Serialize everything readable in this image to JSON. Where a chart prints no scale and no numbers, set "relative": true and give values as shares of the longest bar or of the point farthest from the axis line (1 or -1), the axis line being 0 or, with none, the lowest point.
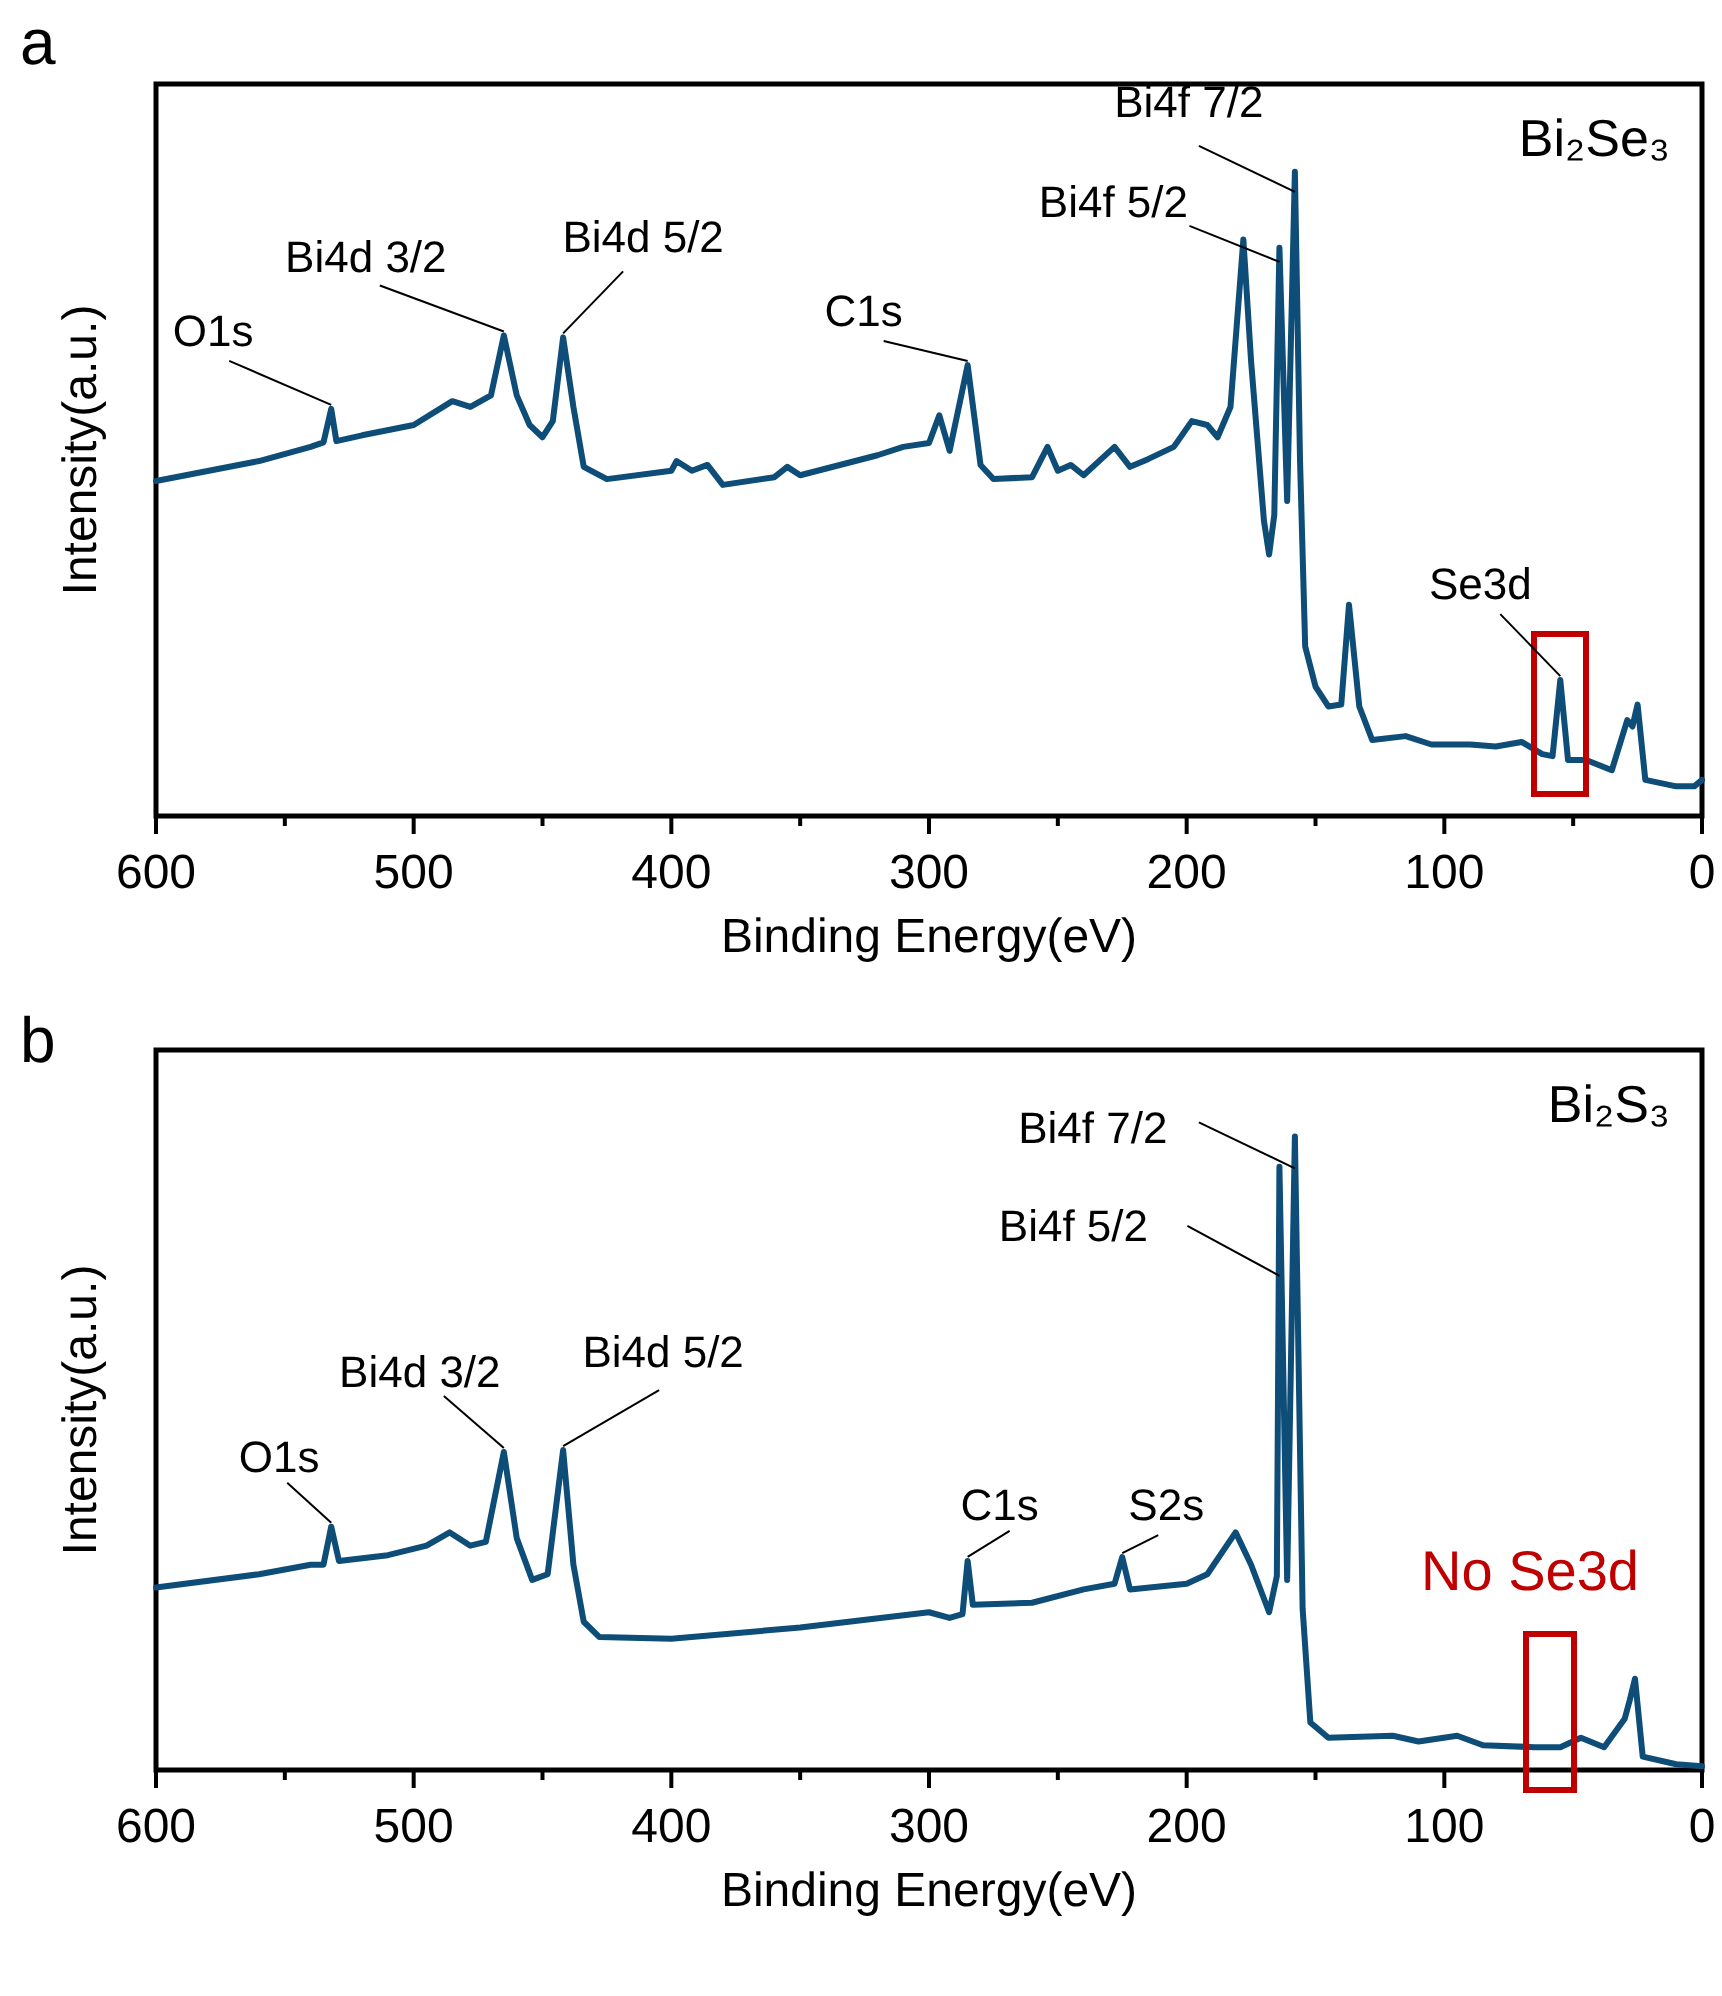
{
  "chart_data": [
    {
      "type": "line",
      "title": "Bi₂Se₃",
      "xlabel": "Binding Energy(eV)",
      "ylabel": "Intensity(a.u.)",
      "relative": true,
      "xlim": [
        600,
        0
      ],
      "xticks": [
        600,
        {
          "value": 550,
          "label": null
        },
        500,
        {
          "value": 450,
          "label": null
        },
        400,
        {
          "value": 350,
          "label": null
        },
        300,
        {
          "value": 250,
          "label": null
        },
        200,
        {
          "value": 150,
          "label": null
        },
        100,
        {
          "value": 50,
          "label": null
        },
        0
      ],
      "tick_labels": "x",
      "series": [
        {
          "color": "#0e4d78",
          "x": [
            600,
            560,
            540,
            535,
            532,
            530,
            520,
            500,
            485,
            478,
            470,
            465,
            460,
            455,
            450,
            446,
            442,
            438,
            434,
            425,
            400,
            398,
            392,
            386,
            380,
            360,
            355,
            350,
            320,
            310,
            300,
            296,
            292,
            285,
            280,
            275,
            260,
            254,
            250,
            245,
            240,
            228,
            222,
            215,
            205,
            198,
            192,
            188,
            183,
            178,
            175,
            170,
            168,
            166,
            164,
            161,
            158,
            156,
            154,
            150,
            145,
            140,
            137,
            133,
            128,
            115,
            105,
            90,
            80,
            70,
            62,
            58,
            55,
            52,
            45,
            35,
            29,
            27,
            25,
            22,
            10,
            3,
            0
          ],
          "values": [
            0.52,
            0.551,
            0.573,
            0.58,
            0.632,
            0.582,
            0.591,
            0.607,
            0.644,
            0.635,
            0.653,
            0.746,
            0.653,
            0.607,
            0.588,
            0.613,
            0.743,
            0.635,
            0.542,
            0.523,
            0.536,
            0.551,
            0.536,
            0.545,
            0.514,
            0.526,
            0.542,
            0.529,
            0.56,
            0.573,
            0.579,
            0.622,
            0.567,
            0.7,
            0.545,
            0.523,
            0.526,
            0.573,
            0.536,
            0.545,
            0.529,
            0.573,
            0.542,
            0.554,
            0.573,
            0.613,
            0.607,
            0.588,
            0.635,
            0.895,
            0.706,
            0.458,
            0.406,
            0.467,
            0.882,
            0.489,
            1,
            0.551,
            0.263,
            0.201,
            0.17,
            0.173,
            0.328,
            0.17,
            0.118,
            0.124,
            0.111,
            0.111,
            0.108,
            0.115,
            0.096,
            0.093,
            0.211,
            0.087,
            0.087,
            0.071,
            0.149,
            0.139,
            0.173,
            0.056,
            0.046,
            0.046,
            0.056
          ]
        }
      ],
      "annotations": [
        "a",
        {
          "text": "O1s",
          "x": 532,
          "y": 0.632
        },
        {
          "text": "Bi4d 3/2",
          "x": 465,
          "y": 0.746
        },
        {
          "text": "Bi4d 5/2",
          "x": 442,
          "y": 0.743
        },
        {
          "text": "C1s",
          "x": 285,
          "y": 0.7
        },
        {
          "text": "Bi4f 5/2",
          "x": 164,
          "y": 0.882
        },
        {
          "text": "Bi4f 7/2",
          "x": 158,
          "y": 1
        },
        {
          "text": "Se3d",
          "x": 55,
          "y": 0.211
        }
      ]
    },
    {
      "type": "line",
      "title": "Bi₂S₃",
      "xlabel": "Binding Energy(eV)",
      "ylabel": "Intensity(a.u.)",
      "relative": true,
      "xlim": [
        600,
        0
      ],
      "xticks": [
        600,
        {
          "value": 550,
          "label": null
        },
        500,
        {
          "value": 450,
          "label": null
        },
        400,
        {
          "value": 350,
          "label": null
        },
        300,
        {
          "value": 250,
          "label": null
        },
        200,
        {
          "value": 150,
          "label": null
        },
        100,
        {
          "value": 50,
          "label": null
        },
        0
      ],
      "tick_labels": "x",
      "series": [
        {
          "color": "#0e4d78",
          "x": [
            600,
            560,
            540,
            535,
            532,
            529,
            510,
            495,
            486,
            478,
            472,
            465,
            460,
            454,
            448,
            442,
            438,
            434,
            428,
            400,
            350,
            300,
            292,
            287,
            285,
            283,
            260,
            240,
            228,
            225,
            222,
            200,
            192,
            181,
            175,
            168,
            165,
            164,
            161,
            158,
            155,
            152,
            145,
            120,
            110,
            95,
            85,
            65,
            55,
            47,
            38,
            30,
            28,
            26,
            23,
            10,
            0
          ],
          "values": [
            0.288,
            0.309,
            0.324,
            0.324,
            0.384,
            0.33,
            0.339,
            0.354,
            0.375,
            0.354,
            0.36,
            0.502,
            0.366,
            0.3,
            0.309,
            0.505,
            0.324,
            0.234,
            0.21,
            0.207,
            0.225,
            0.249,
            0.24,
            0.246,
            0.33,
            0.261,
            0.264,
            0.285,
            0.294,
            0.336,
            0.285,
            0.294,
            0.309,
            0.375,
            0.324,
            0.249,
            0.306,
            0.952,
            0.3,
            1,
            0.255,
            0.075,
            0.051,
            0.054,
            0.045,
            0.054,
            0.039,
            0.036,
            0.036,
            0.051,
            0.036,
            0.081,
            0.111,
            0.144,
            0.021,
            0.009,
            0.006
          ]
        }
      ],
      "annotations": [
        "b",
        "No Se3d",
        {
          "text": "O1s",
          "x": 532,
          "y": 0.384
        },
        {
          "text": "Bi4d 3/2",
          "x": 465,
          "y": 0.502
        },
        {
          "text": "Bi4d 5/2",
          "x": 442,
          "y": 0.505
        },
        {
          "text": "C1s",
          "x": 285,
          "y": 0.33
        },
        {
          "text": "S2s",
          "x": 225,
          "y": 0.336
        },
        {
          "text": "Bi4f 5/2",
          "x": 164,
          "y": 0.78
        },
        {
          "text": "Bi4f 7/2",
          "x": 158,
          "y": 1
        }
      ]
    }
  ]
}
